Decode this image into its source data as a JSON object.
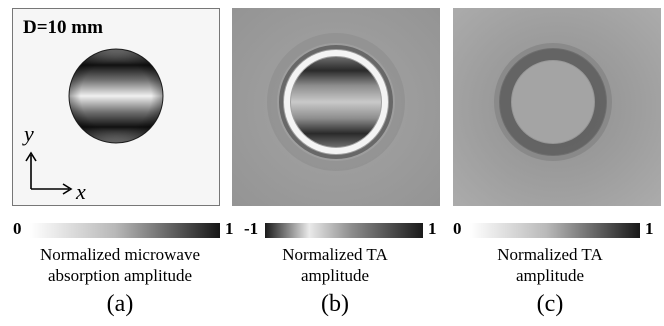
{
  "panel_a": {
    "diameter_label": "D=10 mm",
    "axis_y": "y",
    "axis_x": "x",
    "colorbar_min": "0",
    "colorbar_max": "1",
    "caption_line1": "Normalized microwave",
    "caption_line2": "absorption amplitude",
    "sublabel": "(a)"
  },
  "panel_b": {
    "colorbar_min": "-1",
    "colorbar_max": "1",
    "caption_line1": "Normalized TA",
    "caption_line2": "amplitude",
    "sublabel": "(b)"
  },
  "panel_c": {
    "colorbar_min": "0",
    "colorbar_max": "1",
    "caption_line1": "Normalized TA",
    "caption_line2": "amplitude",
    "sublabel": "(c)"
  }
}
